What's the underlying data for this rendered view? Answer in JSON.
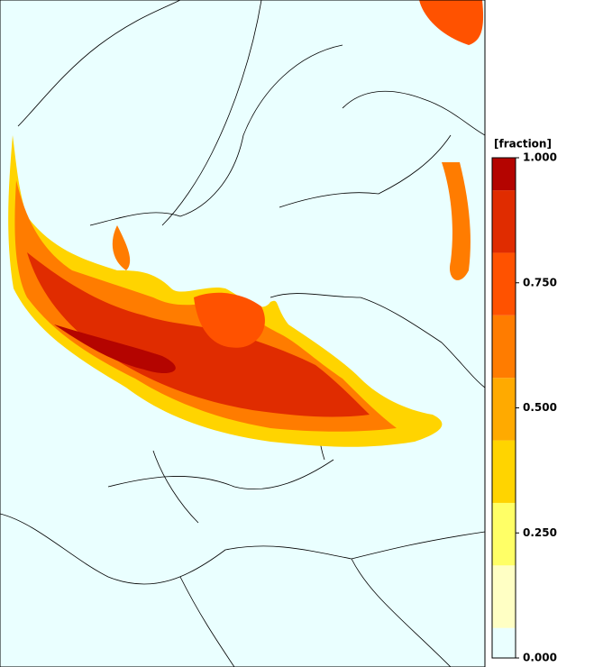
{
  "legend": {
    "title": "[fraction]",
    "ticks": [
      {
        "value": 0,
        "label": "0.000"
      },
      {
        "value": 0.25,
        "label": "0.250"
      },
      {
        "value": 0.5,
        "label": "0.500"
      },
      {
        "value": 0.75,
        "label": "0.750"
      },
      {
        "value": 1,
        "label": "1.000"
      }
    ],
    "lim": [
      0,
      1
    ],
    "bounds": [
      0,
      0.06,
      0.185,
      0.31,
      0.435,
      0.56,
      0.685,
      0.81,
      0.935,
      1
    ],
    "colors": [
      "#eaffff",
      "#ffffc4",
      "#ffff66",
      "#ffd400",
      "#ffaa00",
      "#ff7c00",
      "#ff5200",
      "#e02c00",
      "#b40400"
    ]
  }
}
